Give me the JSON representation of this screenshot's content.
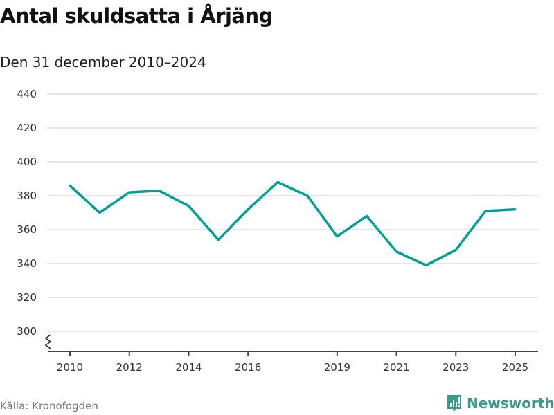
{
  "title": "Antal skuldsatta i Årjäng",
  "subtitle": "Den 31 december 2010–2024",
  "source": "Källa: Kronofogden",
  "logo": "Newsworthy",
  "colors": {
    "line": "#00a096",
    "grid": "#dddddd",
    "axis": "#444444",
    "logo": "#3a9a8e"
  },
  "chart_data": {
    "type": "line",
    "title": "Antal skuldsatta i Årjäng",
    "subtitle": "Den 31 december 2010–2024",
    "x": [
      2010,
      2011,
      2012,
      2013,
      2014,
      2015,
      2016,
      2017,
      2018,
      2019,
      2020,
      2021,
      2022,
      2023,
      2024,
      2025
    ],
    "series": [
      {
        "name": "Antal skuldsatta",
        "values": [
          386,
          370,
          382,
          383,
          374,
          354,
          372,
          388,
          380,
          356,
          368,
          347,
          339,
          348,
          371,
          372
        ]
      }
    ],
    "xticks": [
      "2010",
      "2012",
      "2014",
      "2016",
      "2019",
      "2021",
      "2023",
      "2025"
    ],
    "yticks": [
      "300",
      "320",
      "340",
      "360",
      "380",
      "400",
      "420",
      "440"
    ],
    "ylim": [
      300,
      440
    ],
    "xlim": [
      2010,
      2025
    ],
    "grid": true,
    "axis_break": true
  }
}
